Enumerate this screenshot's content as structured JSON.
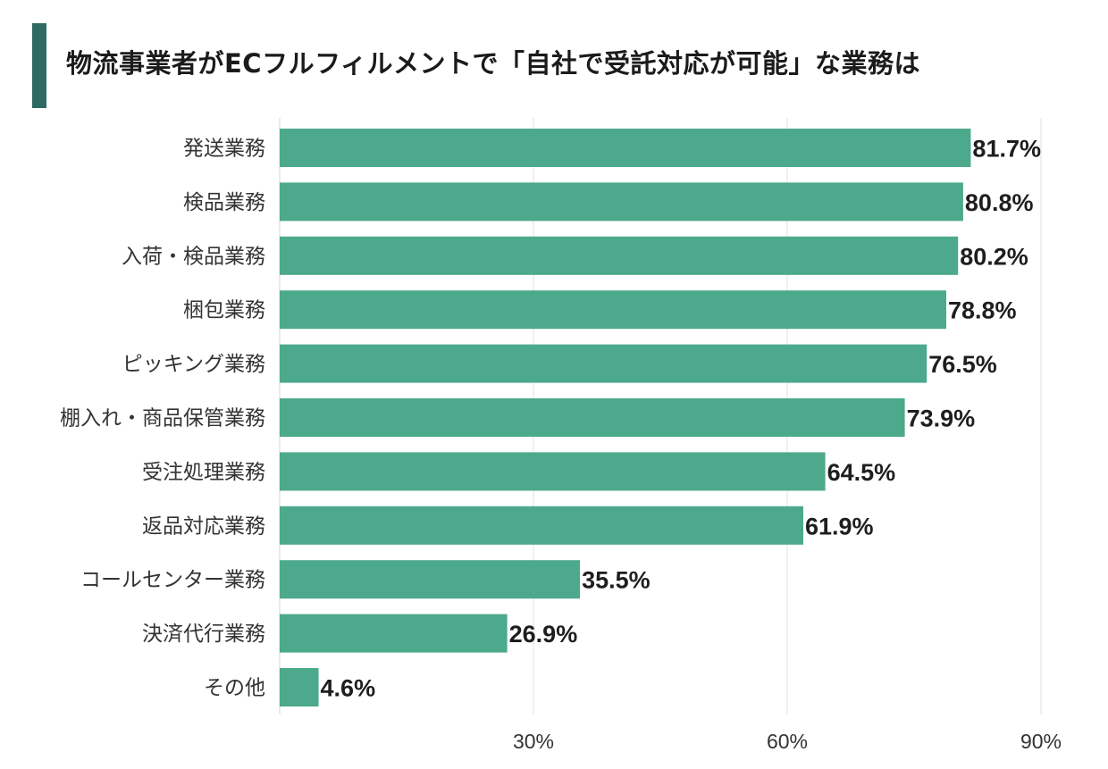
{
  "title": "物流事業者がECフルフィルメントで「自社で受託対応が可能」な業務は",
  "colors": {
    "accent": "#2d6a62",
    "bar": "#4ca98c",
    "grid": "#e2e2e2"
  },
  "chart_data": {
    "type": "bar",
    "orientation": "horizontal",
    "categories": [
      "発送業務",
      "検品業務",
      "入荷・検品業務",
      "梱包業務",
      "ピッキング業務",
      "棚入れ・商品保管業務",
      "受注処理業務",
      "返品対応業務",
      "コールセンター業務",
      "決済代行業務",
      "その他"
    ],
    "values": [
      81.7,
      80.8,
      80.2,
      78.8,
      76.5,
      73.9,
      64.5,
      61.9,
      35.5,
      26.9,
      4.6
    ],
    "value_labels": [
      "81.7%",
      "80.8%",
      "80.2%",
      "78.8%",
      "76.5%",
      "73.9%",
      "64.5%",
      "61.9%",
      "35.5%",
      "26.9%",
      "4.6%"
    ],
    "x_ticks": [
      30,
      60,
      90
    ],
    "x_tick_labels": [
      "30%",
      "60%",
      "90%"
    ],
    "xlim": [
      0,
      90
    ],
    "grid": true,
    "legend": "none"
  }
}
